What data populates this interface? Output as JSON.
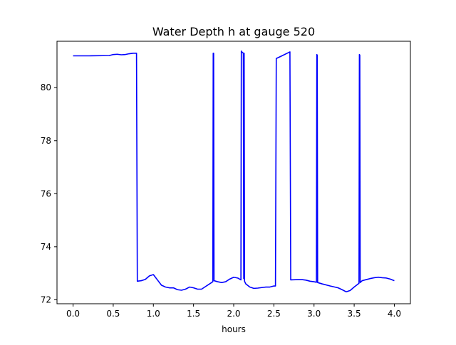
{
  "chart_data": {
    "type": "line",
    "title": "Water Depth h at gauge 520",
    "xlabel": "hours",
    "ylabel": "",
    "xlim": [
      -0.2,
      4.2
    ],
    "ylim": [
      71.85,
      81.75
    ],
    "xticks": [
      0.0,
      0.5,
      1.0,
      1.5,
      2.0,
      2.5,
      3.0,
      3.5,
      4.0
    ],
    "xtick_labels": [
      "0.0",
      "0.5",
      "1.0",
      "1.5",
      "2.0",
      "2.5",
      "3.0",
      "3.5",
      "4.0"
    ],
    "yticks": [
      72,
      74,
      76,
      78,
      80
    ],
    "ytick_labels": [
      "72",
      "74",
      "76",
      "78",
      "80"
    ],
    "grid": false,
    "legend": "none",
    "series": [
      {
        "color": "#0000ff",
        "x": [
          0.0,
          0.2,
          0.45,
          0.5,
          0.55,
          0.6,
          0.65,
          0.7,
          0.75,
          0.79,
          0.8,
          0.85,
          0.9,
          0.95,
          1.0,
          1.05,
          1.1,
          1.15,
          1.2,
          1.25,
          1.3,
          1.35,
          1.4,
          1.45,
          1.5,
          1.55,
          1.6,
          1.65,
          1.7,
          1.74,
          1.745,
          1.75,
          1.755,
          1.8,
          1.85,
          1.9,
          1.95,
          2.0,
          2.05,
          2.09,
          2.095,
          2.1,
          2.12,
          2.125,
          2.13,
          2.135,
          2.15,
          2.2,
          2.25,
          2.3,
          2.35,
          2.4,
          2.45,
          2.5,
          2.52,
          2.53,
          2.6,
          2.7,
          2.71,
          2.8,
          2.85,
          2.9,
          2.95,
          3.0,
          3.03,
          3.035,
          3.04,
          3.045,
          3.1,
          3.2,
          3.3,
          3.35,
          3.4,
          3.45,
          3.5,
          3.56,
          3.565,
          3.57,
          3.575,
          3.6,
          3.65,
          3.7,
          3.75,
          3.8,
          3.85,
          3.9,
          3.95,
          4.0
        ],
        "y": [
          81.2,
          81.2,
          81.21,
          81.25,
          81.26,
          81.24,
          81.25,
          81.28,
          81.3,
          81.3,
          72.7,
          72.72,
          72.77,
          72.9,
          72.95,
          72.75,
          72.55,
          72.48,
          72.45,
          72.45,
          72.38,
          72.36,
          72.4,
          72.48,
          72.45,
          72.4,
          72.4,
          72.5,
          72.6,
          72.68,
          81.3,
          81.3,
          72.72,
          72.68,
          72.65,
          72.68,
          72.78,
          72.85,
          72.82,
          72.75,
          81.38,
          81.35,
          81.3,
          72.8,
          81.3,
          72.7,
          72.6,
          72.48,
          72.43,
          72.44,
          72.46,
          72.48,
          72.48,
          72.52,
          72.52,
          81.1,
          81.2,
          81.35,
          72.75,
          72.76,
          72.76,
          72.74,
          72.7,
          72.68,
          72.66,
          81.25,
          81.22,
          72.65,
          72.6,
          72.52,
          72.45,
          72.38,
          72.3,
          72.35,
          72.48,
          72.62,
          81.25,
          81.22,
          72.65,
          72.72,
          72.76,
          72.8,
          72.83,
          72.85,
          72.83,
          72.82,
          72.78,
          72.72
        ]
      }
    ]
  }
}
